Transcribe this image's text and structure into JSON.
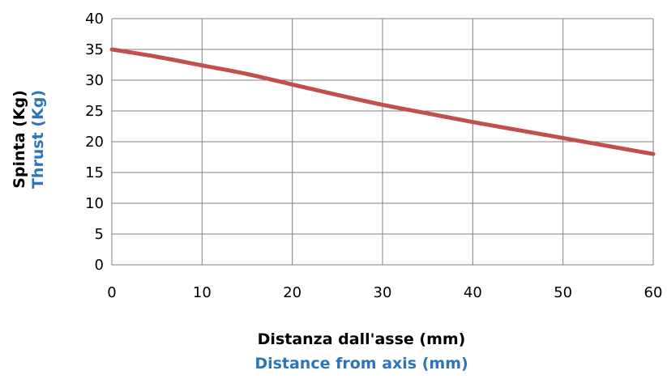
{
  "chart_data": {
    "type": "line",
    "xlabel": "Distanza dall'asse (mm)",
    "xlabel_secondary": "Distance from axis (mm)",
    "ylabel": "Spinta (Kg)",
    "ylabel_secondary": "Thrust (Kg)",
    "xlim": [
      0,
      60
    ],
    "ylim": [
      0,
      40
    ],
    "x_ticks": [
      "0",
      "10",
      "20",
      "30",
      "40",
      "50",
      "60"
    ],
    "y_ticks": [
      "0",
      "5",
      "10",
      "15",
      "20",
      "25",
      "30",
      "35",
      "40"
    ],
    "grid": true,
    "series": [
      {
        "x": [
          0,
          5,
          10,
          15,
          20,
          25,
          30,
          35,
          40,
          45,
          50,
          55,
          60
        ],
        "y": [
          35,
          33.8,
          32.4,
          31,
          29.3,
          27.6,
          26,
          24.6,
          23.2,
          21.9,
          20.6,
          19.3,
          18
        ],
        "color": "#c0504d"
      }
    ],
    "colors": {
      "primary_label": "#000000",
      "secondary_label": "#2e75b6",
      "grid": "#808080"
    }
  }
}
